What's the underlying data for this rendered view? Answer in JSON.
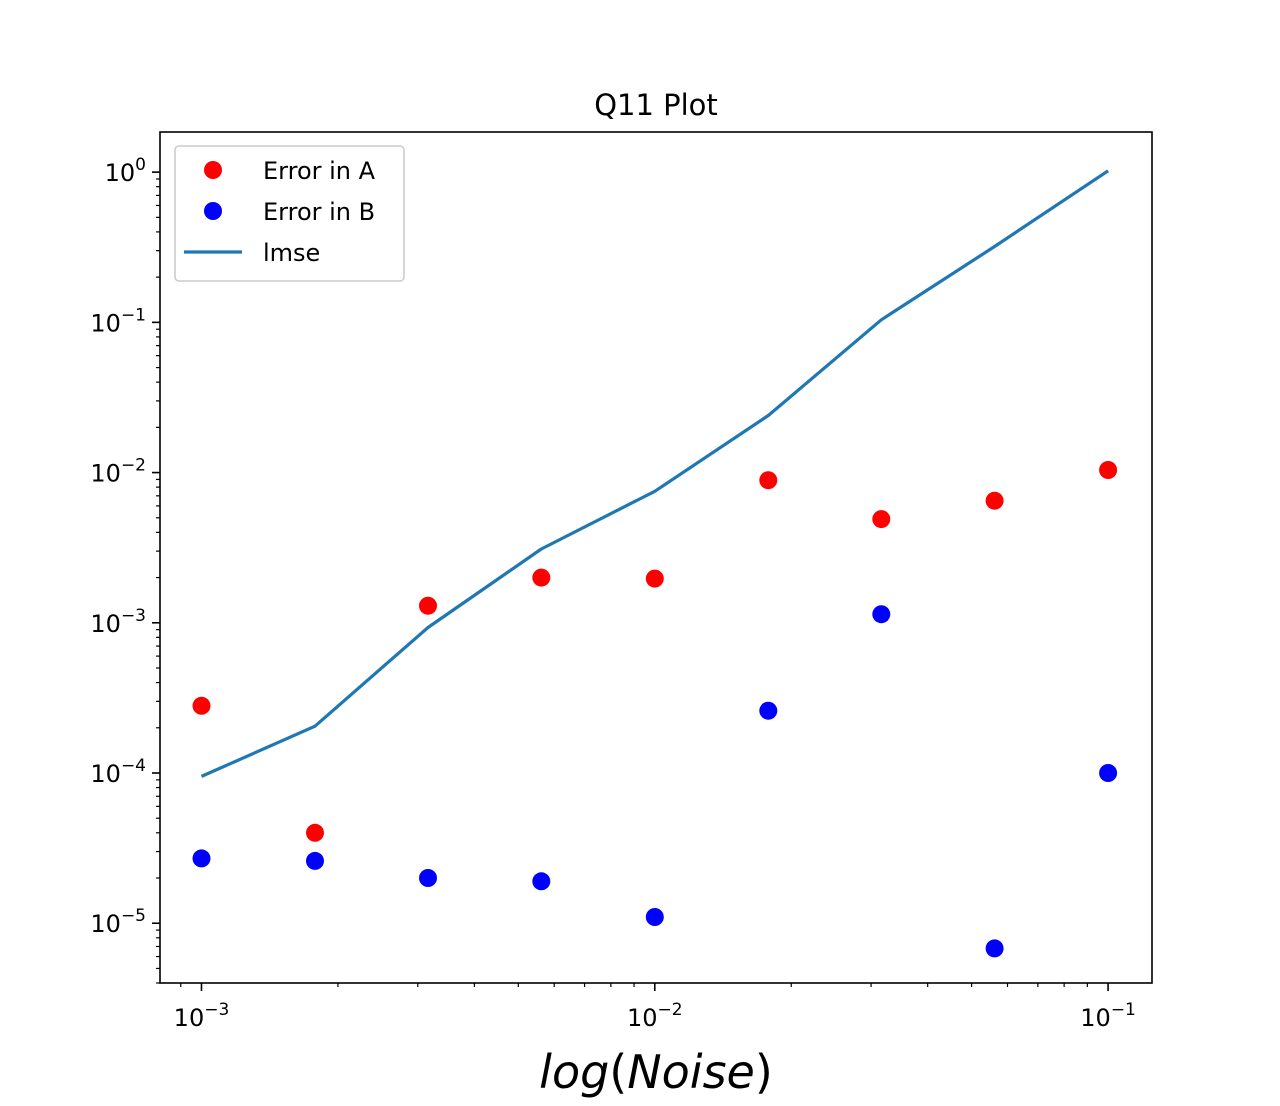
{
  "chart_data": {
    "type": "scatter",
    "title": "Q11  Plot",
    "xlabel": {
      "prefix": "log",
      "open": "(",
      "var": "Noise",
      "close": ")"
    },
    "ylabel": "",
    "xscale": "log",
    "yscale": "log",
    "xlim": [
      0.00081,
      0.125
    ],
    "ylim": [
      4e-06,
      1.85
    ],
    "grid": false,
    "legend_position": "top-left",
    "x": [
      0.001,
      0.00178,
      0.00316,
      0.00562,
      0.01,
      0.0178,
      0.0316,
      0.0562,
      0.1
    ],
    "series": [
      {
        "name": "Error in A",
        "kind": "scatter",
        "color": "#ff0000",
        "values": [
          0.00028,
          4e-05,
          0.0013,
          0.002,
          0.00197,
          0.0089,
          0.0049,
          0.0065,
          0.0104
        ]
      },
      {
        "name": "Error in B",
        "kind": "scatter",
        "color": "#0000ff",
        "values": [
          2.7e-05,
          2.6e-05,
          2e-05,
          1.9e-05,
          1.1e-05,
          0.00026,
          0.00114,
          6.8e-06,
          0.0001
        ]
      },
      {
        "name": "lmse",
        "kind": "line",
        "color": "#1f77b4",
        "values": [
          9.5e-05,
          0.000205,
          0.00093,
          0.0031,
          0.0075,
          0.024,
          0.104,
          0.32,
          1.02
        ]
      }
    ],
    "x_ticks": [
      {
        "value": 0.001,
        "base": "10",
        "exp": "−3"
      },
      {
        "value": 0.01,
        "base": "10",
        "exp": "−2"
      },
      {
        "value": 0.1,
        "base": "10",
        "exp": "−1"
      }
    ],
    "y_ticks": [
      {
        "value": 1e-05,
        "base": "10",
        "exp": "−5"
      },
      {
        "value": 0.0001,
        "base": "10",
        "exp": "−4"
      },
      {
        "value": 0.001,
        "base": "10",
        "exp": "−3"
      },
      {
        "value": 0.01,
        "base": "10",
        "exp": "−2"
      },
      {
        "value": 0.1,
        "base": "10",
        "exp": "−1"
      },
      {
        "value": 1,
        "base": "10",
        "exp": "0"
      }
    ]
  }
}
